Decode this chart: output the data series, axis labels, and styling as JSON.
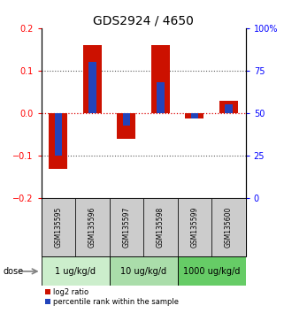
{
  "title": "GDS2924 / 4650",
  "samples": [
    "GSM135595",
    "GSM135596",
    "GSM135597",
    "GSM135598",
    "GSM135599",
    "GSM135600"
  ],
  "log2_ratio": [
    -0.13,
    0.16,
    -0.06,
    0.16,
    -0.012,
    0.03
  ],
  "percentile_rank": [
    25,
    80,
    43,
    68,
    47,
    55
  ],
  "ylim_left": [
    -0.2,
    0.2
  ],
  "ylim_right": [
    0,
    100
  ],
  "yticks_left": [
    -0.2,
    -0.1,
    0,
    0.1,
    0.2
  ],
  "yticks_right": [
    0,
    25,
    50,
    75,
    100
  ],
  "ytick_labels_right": [
    "0",
    "25",
    "50",
    "75",
    "100%"
  ],
  "dotted_lines": [
    0.1,
    -0.1
  ],
  "zero_line": 0.0,
  "bar_color_red": "#cc1100",
  "bar_color_blue": "#2244bb",
  "dose_groups": [
    {
      "label": "1 ug/kg/d",
      "samples": [
        0,
        1
      ],
      "color": "#cceecc"
    },
    {
      "label": "10 ug/kg/d",
      "samples": [
        2,
        3
      ],
      "color": "#aaddaa"
    },
    {
      "label": "1000 ug/kg/d",
      "samples": [
        4,
        5
      ],
      "color": "#66cc66"
    }
  ],
  "dose_label": "dose",
  "legend_red": "log2 ratio",
  "legend_blue": "percentile rank within the sample",
  "sample_bg_color": "#cccccc",
  "zero_line_color": "#dd0000",
  "dotted_color": "#555555",
  "title_fontsize": 10,
  "tick_fontsize": 7,
  "sample_fontsize": 5.5,
  "dose_fontsize": 7,
  "legend_fontsize": 6
}
